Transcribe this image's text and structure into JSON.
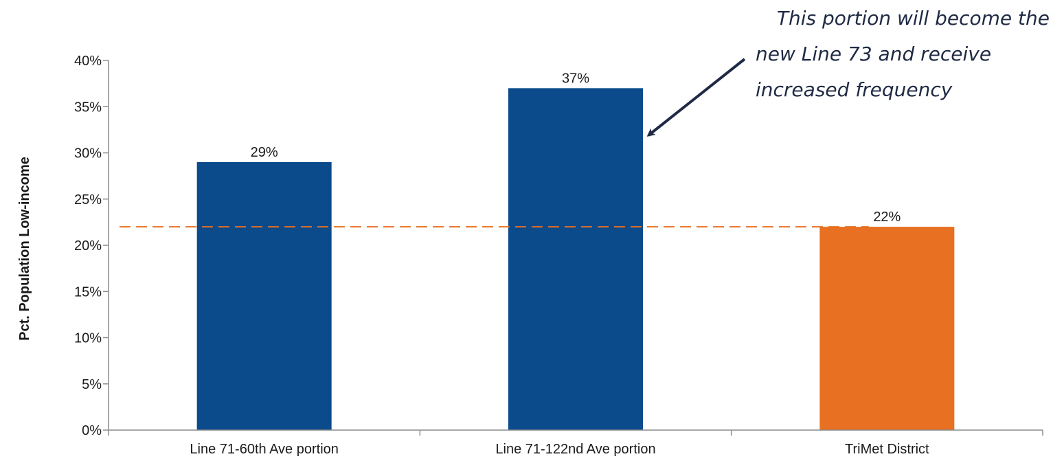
{
  "chart_data": {
    "type": "bar",
    "categories": [
      "Line 71-60th Ave portion",
      "Line 71-122nd Ave portion",
      "TriMet District"
    ],
    "values": [
      29,
      37,
      22
    ],
    "value_labels": [
      "29%",
      "37%",
      "22%"
    ],
    "bar_colors": [
      "#0b4a8b",
      "#0b4a8b",
      "#e87022"
    ],
    "ylabel": "Pct. Population Low-income",
    "xlabel": "",
    "ylim": [
      0,
      40
    ],
    "yticks": [
      0,
      5,
      10,
      15,
      20,
      25,
      30,
      35,
      40
    ],
    "ytick_labels": [
      "0%",
      "5%",
      "10%",
      "15%",
      "20%",
      "25%",
      "30%",
      "35%",
      "40%"
    ],
    "reference_line": {
      "value": 22,
      "style": "dashed",
      "color": "#e87022"
    },
    "annotation": {
      "lines": [
        "This portion will become the",
        "new Line 73 and receive",
        "increased frequency"
      ],
      "points_to_category": "Line 71-122nd Ave portion",
      "arrow_color": "#1f2a44"
    },
    "grid": false,
    "legend": "none"
  }
}
